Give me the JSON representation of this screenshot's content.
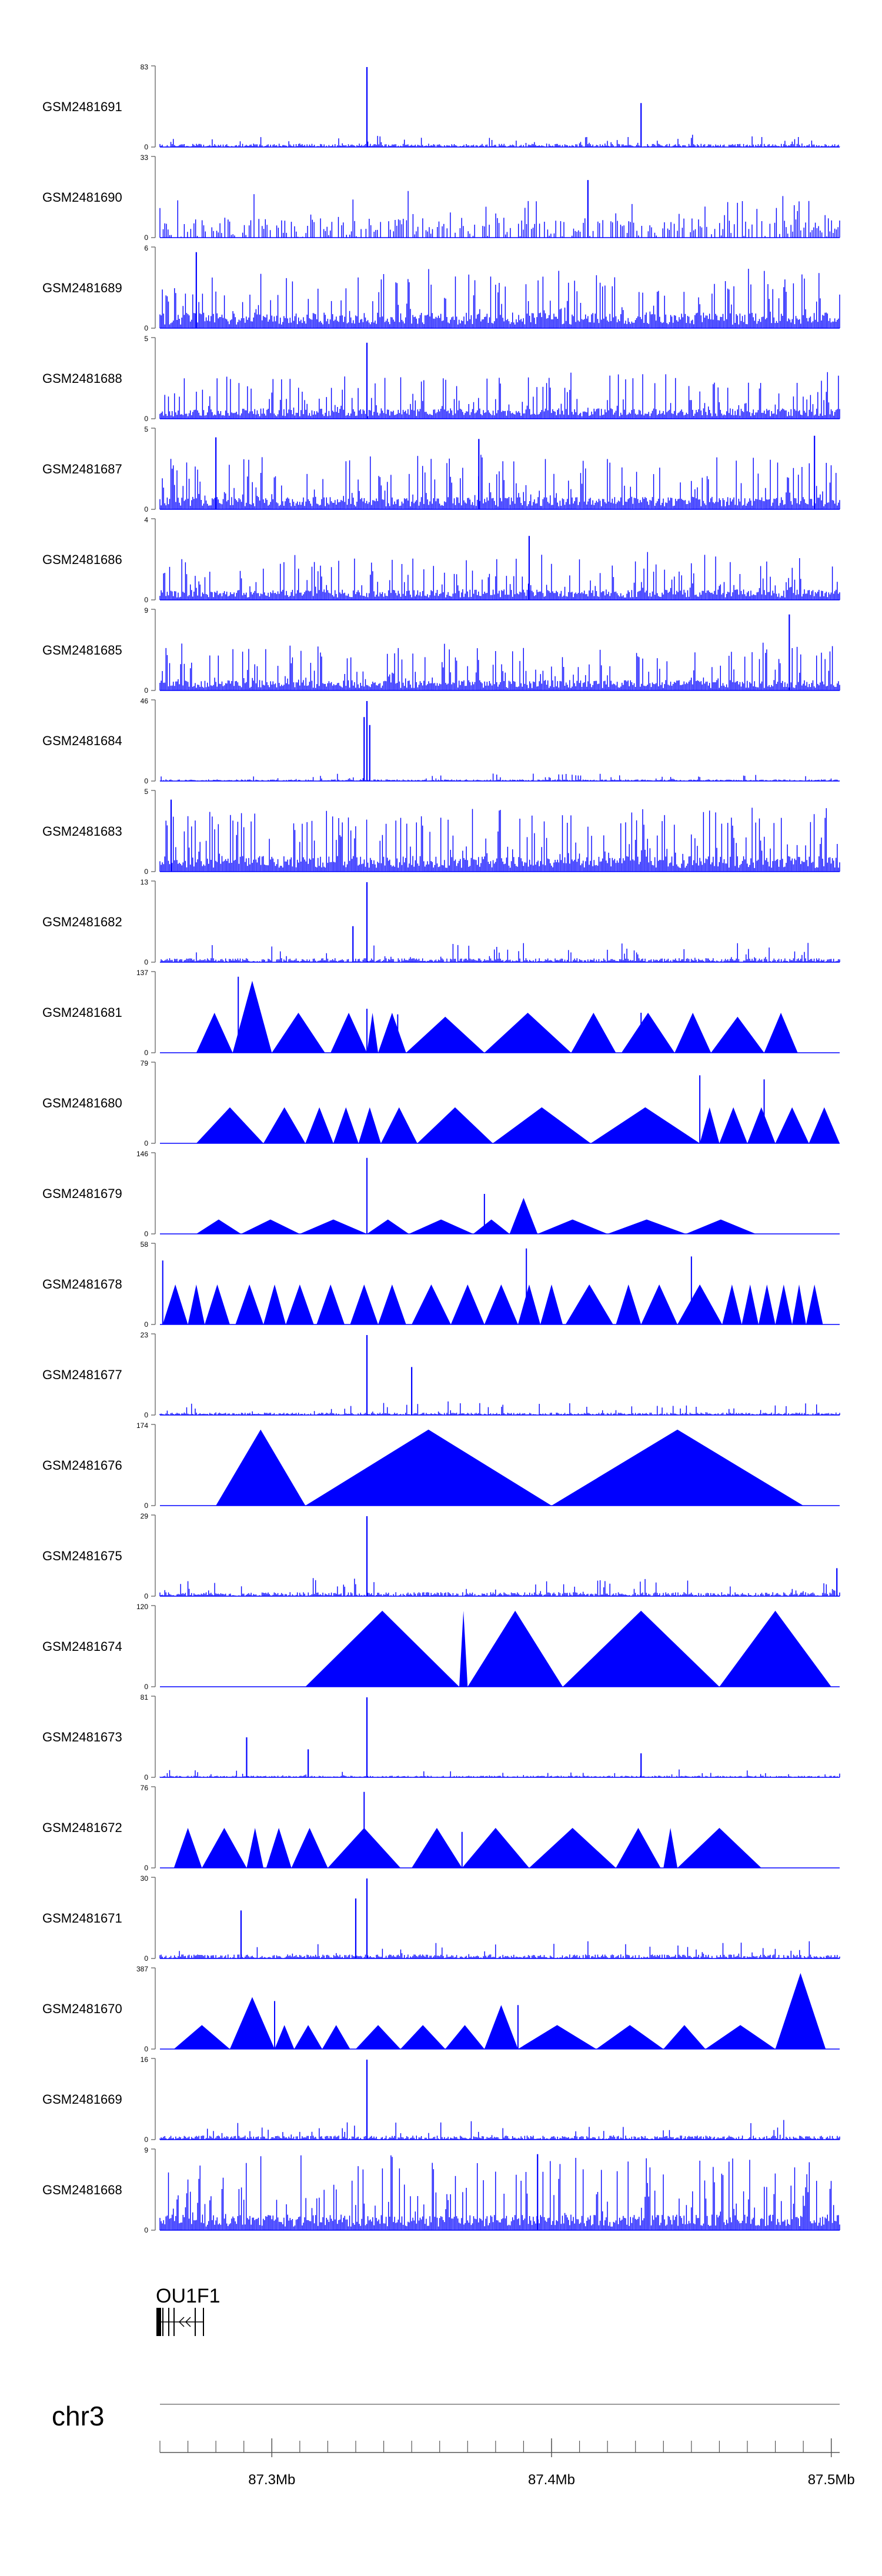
{
  "chart_data": {
    "type": "area",
    "title": "",
    "chromosome": "chr3",
    "gene": "OU1F1",
    "gene_label_visible": "OU1F1",
    "xlim": [
      87.26,
      87.503
    ],
    "x_unit": "Mb",
    "x_ticks": [
      {
        "value": 87.3,
        "label": "87.3Mb"
      },
      {
        "value": 87.4,
        "label": "87.4Mb"
      },
      {
        "value": 87.5,
        "label": "87.5Mb"
      }
    ],
    "color": "#0000ff",
    "tracks": [
      {
        "name": "GSM2481691",
        "ymax": 83,
        "style": "spiky",
        "base": 0.04,
        "noise": 0.06,
        "peaks": [
          [
            87.334,
            1.0
          ],
          [
            87.432,
            0.55
          ]
        ],
        "seed": 11
      },
      {
        "name": "GSM2481690",
        "ymax": 33,
        "style": "comb",
        "base": 0.25,
        "noise": 0.25,
        "peaks": [
          [
            87.413,
            0.72
          ]
        ],
        "seed": 12
      },
      {
        "name": "GSM2481689",
        "ymax": 6,
        "style": "dense",
        "base": 0.15,
        "noise": 0.35,
        "peaks": [
          [
            87.273,
            0.95
          ]
        ],
        "seed": 13
      },
      {
        "name": "GSM2481688",
        "ymax": 5,
        "style": "dense",
        "base": 0.1,
        "noise": 0.3,
        "peaks": [
          [
            87.334,
            0.95
          ]
        ],
        "seed": 14
      },
      {
        "name": "GSM2481687",
        "ymax": 5,
        "style": "dense",
        "base": 0.12,
        "noise": 0.35,
        "peaks": [
          [
            87.28,
            0.9
          ],
          [
            87.374,
            0.88
          ],
          [
            87.494,
            0.92
          ]
        ],
        "seed": 15
      },
      {
        "name": "GSM2481686",
        "ymax": 4,
        "style": "dense",
        "base": 0.1,
        "noise": 0.3,
        "peaks": [
          [
            87.392,
            0.8
          ]
        ],
        "seed": 16
      },
      {
        "name": "GSM2481685",
        "ymax": 9,
        "style": "dense",
        "base": 0.1,
        "noise": 0.3,
        "peaks": [
          [
            87.485,
            0.95
          ]
        ],
        "seed": 17
      },
      {
        "name": "GSM2481684",
        "ymax": 46,
        "style": "spiky",
        "base": 0.02,
        "noise": 0.04,
        "peaks": [
          [
            87.334,
            1.0
          ],
          [
            87.333,
            0.8
          ],
          [
            87.335,
            0.7
          ]
        ],
        "seed": 18
      },
      {
        "name": "GSM2481683",
        "ymax": 5,
        "style": "dense",
        "base": 0.15,
        "noise": 0.4,
        "peaks": [
          [
            87.264,
            0.9
          ]
        ],
        "seed": 19
      },
      {
        "name": "GSM2481682",
        "ymax": 13,
        "style": "spiky",
        "base": 0.05,
        "noise": 0.1,
        "peaks": [
          [
            87.334,
            1.0
          ],
          [
            87.329,
            0.45
          ]
        ],
        "seed": 20
      },
      {
        "name": "GSM2481681",
        "ymax": 137,
        "style": "tri",
        "tris": [
          [
            87.273,
            87.286,
            0.5
          ],
          [
            87.286,
            87.3,
            0.9
          ],
          [
            87.3,
            87.319,
            0.5
          ],
          [
            87.321,
            87.334,
            0.5
          ],
          [
            87.334,
            87.338,
            0.5
          ],
          [
            87.338,
            87.348,
            0.5
          ],
          [
            87.348,
            87.376,
            0.45
          ],
          [
            87.376,
            87.407,
            0.5
          ],
          [
            87.407,
            87.423,
            0.5
          ],
          [
            87.425,
            87.444,
            0.5
          ],
          [
            87.444,
            87.457,
            0.5
          ],
          [
            87.457,
            87.476,
            0.45
          ],
          [
            87.476,
            87.488,
            0.5
          ]
        ],
        "spikes": [
          [
            87.288,
            0.95
          ],
          [
            87.334,
            0.55
          ],
          [
            87.345,
            0.48
          ],
          [
            87.432,
            0.5
          ]
        ]
      },
      {
        "name": "GSM2481680",
        "ymax": 79,
        "style": "tri",
        "tris": [
          [
            87.273,
            87.297,
            0.45
          ],
          [
            87.297,
            87.312,
            0.45
          ],
          [
            87.312,
            87.322,
            0.45
          ],
          [
            87.322,
            87.331,
            0.45
          ],
          [
            87.331,
            87.339,
            0.45
          ],
          [
            87.339,
            87.352,
            0.45
          ],
          [
            87.352,
            87.379,
            0.45
          ],
          [
            87.379,
            87.414,
            0.45
          ],
          [
            87.414,
            87.453,
            0.45
          ],
          [
            87.453,
            87.46,
            0.45
          ],
          [
            87.46,
            87.47,
            0.45
          ],
          [
            87.47,
            87.48,
            0.45
          ],
          [
            87.48,
            87.492,
            0.45
          ],
          [
            87.492,
            87.503,
            0.45
          ]
        ],
        "spikes": [
          [
            87.453,
            0.85
          ],
          [
            87.476,
            0.8
          ]
        ]
      },
      {
        "name": "GSM2481679",
        "ymax": 146,
        "style": "tri",
        "tris": [
          [
            87.273,
            87.289,
            0.18
          ],
          [
            87.289,
            87.31,
            0.18
          ],
          [
            87.31,
            87.334,
            0.18
          ],
          [
            87.334,
            87.349,
            0.18
          ],
          [
            87.349,
            87.372,
            0.18
          ],
          [
            87.372,
            87.385,
            0.18
          ],
          [
            87.385,
            87.395,
            0.45
          ],
          [
            87.395,
            87.42,
            0.18
          ],
          [
            87.42,
            87.448,
            0.18
          ],
          [
            87.448,
            87.473,
            0.18
          ]
        ],
        "spikes": [
          [
            87.334,
            0.95
          ],
          [
            87.376,
            0.5
          ]
        ]
      },
      {
        "name": "GSM2481678",
        "ymax": 58,
        "style": "tri",
        "tris": [
          [
            87.261,
            87.27,
            0.5
          ],
          [
            87.27,
            87.276,
            0.5
          ],
          [
            87.276,
            87.285,
            0.5
          ],
          [
            87.287,
            87.297,
            0.5
          ],
          [
            87.297,
            87.305,
            0.5
          ],
          [
            87.305,
            87.315,
            0.5
          ],
          [
            87.316,
            87.326,
            0.5
          ],
          [
            87.328,
            87.338,
            0.5
          ],
          [
            87.338,
            87.348,
            0.5
          ],
          [
            87.35,
            87.364,
            0.5
          ],
          [
            87.364,
            87.376,
            0.5
          ],
          [
            87.376,
            87.388,
            0.5
          ],
          [
            87.388,
            87.396,
            0.5
          ],
          [
            87.396,
            87.404,
            0.5
          ],
          [
            87.405,
            87.422,
            0.5
          ],
          [
            87.423,
            87.432,
            0.5
          ],
          [
            87.432,
            87.445,
            0.5
          ],
          [
            87.445,
            87.461,
            0.5
          ],
          [
            87.461,
            87.468,
            0.5
          ],
          [
            87.468,
            87.474,
            0.5
          ],
          [
            87.474,
            87.48,
            0.5
          ],
          [
            87.48,
            87.486,
            0.5
          ],
          [
            87.486,
            87.491,
            0.5
          ],
          [
            87.491,
            87.497,
            0.5
          ]
        ],
        "spikes": [
          [
            87.391,
            0.95
          ],
          [
            87.45,
            0.85
          ],
          [
            87.261,
            0.8
          ]
        ]
      },
      {
        "name": "GSM2481677",
        "ymax": 23,
        "style": "spiky",
        "base": 0.03,
        "noise": 0.08,
        "peaks": [
          [
            87.334,
            1.0
          ],
          [
            87.35,
            0.6
          ]
        ],
        "seed": 21
      },
      {
        "name": "GSM2481676",
        "ymax": 174,
        "style": "tri",
        "tris": [
          [
            87.28,
            87.312,
            0.95
          ],
          [
            87.312,
            87.4,
            0.95
          ],
          [
            87.4,
            87.49,
            0.95
          ]
        ],
        "spikes": []
      },
      {
        "name": "GSM2481675",
        "ymax": 29,
        "style": "spiky",
        "base": 0.05,
        "noise": 0.1,
        "peaks": [
          [
            87.334,
            1.0
          ],
          [
            87.502,
            0.35
          ]
        ],
        "seed": 22
      },
      {
        "name": "GSM2481674",
        "ymax": 120,
        "style": "tri",
        "tris": [
          [
            87.312,
            87.367,
            0.95
          ],
          [
            87.367,
            87.37,
            0.95
          ],
          [
            87.37,
            87.404,
            0.95
          ],
          [
            87.404,
            87.46,
            0.95
          ],
          [
            87.46,
            87.5,
            0.95
          ]
        ],
        "spikes": []
      },
      {
        "name": "GSM2481673",
        "ymax": 81,
        "style": "spiky",
        "base": 0.02,
        "noise": 0.04,
        "peaks": [
          [
            87.334,
            1.0
          ],
          [
            87.291,
            0.5
          ],
          [
            87.313,
            0.35
          ],
          [
            87.432,
            0.3
          ]
        ],
        "seed": 23
      },
      {
        "name": "GSM2481672",
        "ymax": 76,
        "style": "tri",
        "tris": [
          [
            87.265,
            87.275,
            0.5
          ],
          [
            87.275,
            87.291,
            0.5
          ],
          [
            87.291,
            87.297,
            0.5
          ],
          [
            87.298,
            87.307,
            0.5
          ],
          [
            87.307,
            87.32,
            0.5
          ],
          [
            87.32,
            87.346,
            0.5
          ],
          [
            87.35,
            87.368,
            0.5
          ],
          [
            87.368,
            87.392,
            0.5
          ],
          [
            87.392,
            87.423,
            0.5
          ],
          [
            87.423,
            87.439,
            0.5
          ],
          [
            87.44,
            87.445,
            0.5
          ],
          [
            87.445,
            87.475,
            0.5
          ]
        ],
        "spikes": [
          [
            87.333,
            0.95
          ],
          [
            87.368,
            0.45
          ]
        ]
      },
      {
        "name": "GSM2481671",
        "ymax": 30,
        "style": "spiky",
        "base": 0.05,
        "noise": 0.1,
        "peaks": [
          [
            87.334,
            1.0
          ],
          [
            87.289,
            0.6
          ],
          [
            87.33,
            0.75
          ]
        ],
        "seed": 24
      },
      {
        "name": "GSM2481670",
        "ymax": 387,
        "style": "tri",
        "tris": [
          [
            87.265,
            87.285,
            0.3
          ],
          [
            87.285,
            87.301,
            0.65
          ],
          [
            87.301,
            87.308,
            0.3
          ],
          [
            87.308,
            87.318,
            0.3
          ],
          [
            87.318,
            87.328,
            0.3
          ],
          [
            87.33,
            87.346,
            0.3
          ],
          [
            87.346,
            87.362,
            0.3
          ],
          [
            87.362,
            87.376,
            0.3
          ],
          [
            87.376,
            87.388,
            0.55
          ],
          [
            87.388,
            87.416,
            0.3
          ],
          [
            87.416,
            87.44,
            0.3
          ],
          [
            87.44,
            87.455,
            0.3
          ],
          [
            87.455,
            87.48,
            0.3
          ],
          [
            87.48,
            87.498,
            0.95
          ]
        ],
        "spikes": [
          [
            87.301,
            0.6
          ],
          [
            87.388,
            0.55
          ]
        ]
      },
      {
        "name": "GSM2481669",
        "ymax": 16,
        "style": "spiky",
        "base": 0.05,
        "noise": 0.1,
        "peaks": [
          [
            87.334,
            1.0
          ]
        ],
        "seed": 25
      },
      {
        "name": "GSM2481668",
        "ymax": 9,
        "style": "dense",
        "base": 0.15,
        "noise": 0.5,
        "peaks": [
          [
            87.395,
            0.95
          ]
        ],
        "seed": 26
      }
    ]
  }
}
